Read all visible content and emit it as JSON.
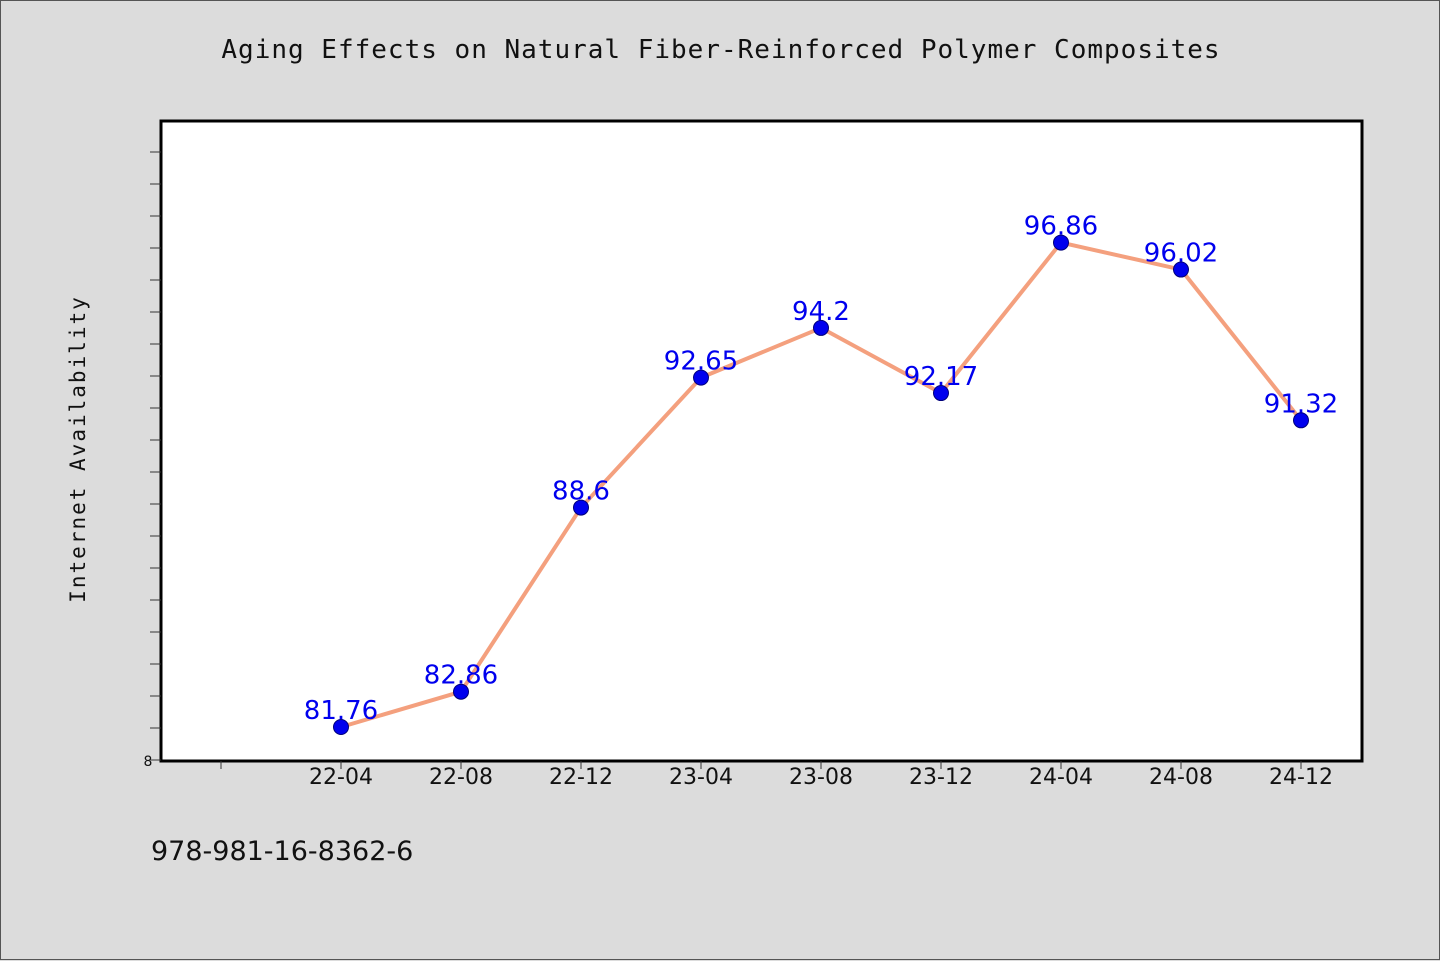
{
  "chart_data": {
    "type": "line",
    "title": "Aging Effects on Natural Fiber-Reinforced Polymer Composites",
    "ylabel": "Internet Availability",
    "xlabel": "",
    "categories": [
      "22-04",
      "22-08",
      "22-12",
      "23-04",
      "23-08",
      "23-12",
      "24-04",
      "24-08",
      "24-12"
    ],
    "series": [
      {
        "values": [
          81.76,
          82.86,
          88.6,
          92.65,
          94.2,
          92.17,
          96.86,
          96.02,
          91.32
        ],
        "labels": [
          "81.76",
          "82.86",
          "88.6",
          "92.65",
          "94.2",
          "92.17",
          "96.86",
          "96.02",
          "91.32"
        ]
      }
    ],
    "y_tick_labels": [
      "8"
    ],
    "ylim": [
      80.7,
      100.65
    ],
    "grid": false,
    "colors": {
      "line": "#f4a07e",
      "marker": "#0000ee",
      "data_label": "#0000ee",
      "plot_background": "#ffffff",
      "figure_background": "#dcdcdc"
    }
  },
  "footer": {
    "id_text": "978-981-16-8362-6"
  }
}
